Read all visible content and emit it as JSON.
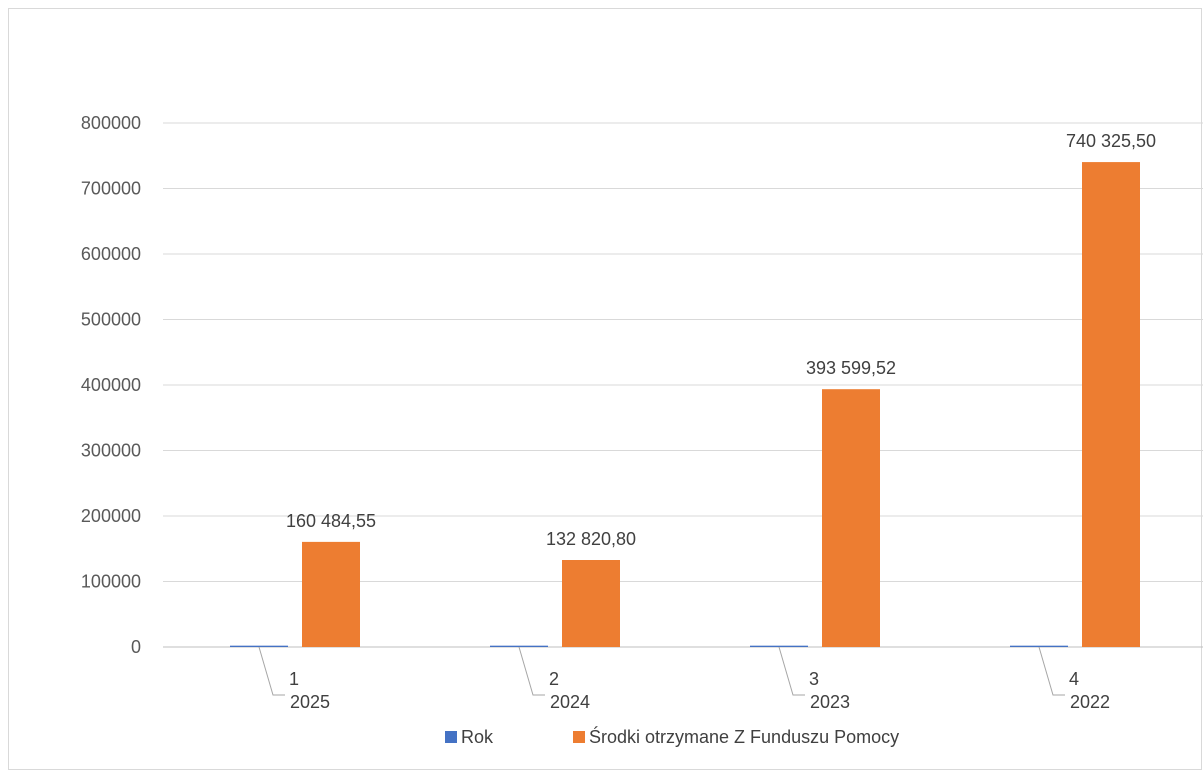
{
  "chart_data": {
    "type": "bar",
    "categories": [
      {
        "index": "1",
        "year": "2025"
      },
      {
        "index": "2",
        "year": "2024"
      },
      {
        "index": "3",
        "year": "2023"
      },
      {
        "index": "4",
        "year": "2022"
      }
    ],
    "series": [
      {
        "name": "Rok",
        "color": "#4472c4",
        "values": [
          2025,
          2024,
          2023,
          2022
        ]
      },
      {
        "name": "Środki otrzymane Z Funduszu Pomocy",
        "color": "#ed7d31",
        "values": [
          160484.55,
          132820.8,
          393599.52,
          740325.5
        ],
        "data_labels": [
          "160 484,55",
          "132 820,80",
          "393 599,52",
          "740 325,50"
        ]
      }
    ],
    "yticks": [
      "0",
      "100000",
      "200000",
      "300000",
      "400000",
      "500000",
      "600000",
      "700000",
      "800000"
    ],
    "ylim": [
      0,
      800000
    ],
    "grid": true,
    "legend_position": "bottom",
    "title": "",
    "xlabel": "",
    "ylabel": ""
  }
}
